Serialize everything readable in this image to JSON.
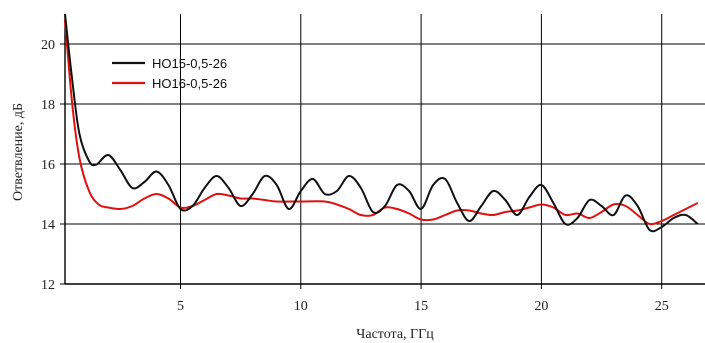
{
  "chart_data": {
    "type": "line",
    "title": "",
    "xlabel": "Частота, ГГц",
    "ylabel": "Ответвление, дБ",
    "xlim": [
      0.2,
      26.8
    ],
    "ylim": [
      12,
      21
    ],
    "xticks": [
      5,
      10,
      15,
      20,
      25
    ],
    "yticks": [
      12,
      14,
      16,
      18,
      20
    ],
    "xtick_labels": [
      "5",
      "10",
      "15",
      "20",
      "25"
    ],
    "ytick_labels": [
      "12",
      "14",
      "16",
      "18",
      "20"
    ],
    "grid": true,
    "legend_position": "top-left",
    "series": [
      {
        "name": "НО15-0,5-26",
        "color": "#111111",
        "points": [
          [
            0.2,
            21.0
          ],
          [
            0.5,
            18.8
          ],
          [
            0.8,
            17.0
          ],
          [
            1.2,
            16.1
          ],
          [
            1.5,
            15.98
          ],
          [
            2.0,
            16.3
          ],
          [
            2.5,
            15.8
          ],
          [
            3.0,
            15.2
          ],
          [
            3.5,
            15.4
          ],
          [
            4.0,
            15.75
          ],
          [
            4.5,
            15.3
          ],
          [
            5.0,
            14.5
          ],
          [
            5.5,
            14.6
          ],
          [
            6.0,
            15.2
          ],
          [
            6.5,
            15.6
          ],
          [
            7.0,
            15.2
          ],
          [
            7.5,
            14.6
          ],
          [
            8.0,
            15.0
          ],
          [
            8.5,
            15.6
          ],
          [
            9.0,
            15.3
          ],
          [
            9.5,
            14.5
          ],
          [
            10.0,
            15.1
          ],
          [
            10.5,
            15.5
          ],
          [
            11.0,
            15.0
          ],
          [
            11.5,
            15.1
          ],
          [
            12.0,
            15.6
          ],
          [
            12.5,
            15.2
          ],
          [
            13.0,
            14.4
          ],
          [
            13.5,
            14.6
          ],
          [
            14.0,
            15.3
          ],
          [
            14.5,
            15.1
          ],
          [
            15.0,
            14.5
          ],
          [
            15.5,
            15.3
          ],
          [
            16.0,
            15.5
          ],
          [
            16.5,
            14.7
          ],
          [
            17.0,
            14.1
          ],
          [
            17.5,
            14.6
          ],
          [
            18.0,
            15.1
          ],
          [
            18.5,
            14.8
          ],
          [
            19.0,
            14.3
          ],
          [
            19.5,
            14.9
          ],
          [
            20.0,
            15.3
          ],
          [
            20.5,
            14.7
          ],
          [
            21.0,
            14.0
          ],
          [
            21.5,
            14.2
          ],
          [
            22.0,
            14.8
          ],
          [
            22.5,
            14.6
          ],
          [
            23.0,
            14.3
          ],
          [
            23.5,
            14.95
          ],
          [
            24.0,
            14.6
          ],
          [
            24.5,
            13.8
          ],
          [
            25.0,
            13.9
          ],
          [
            25.5,
            14.2
          ],
          [
            26.0,
            14.3
          ],
          [
            26.5,
            14.0
          ]
        ]
      },
      {
        "name": "НО16-0,5-26",
        "color": "#e01010",
        "points": [
          [
            0.2,
            20.8
          ],
          [
            0.5,
            18.0
          ],
          [
            0.8,
            16.2
          ],
          [
            1.2,
            15.1
          ],
          [
            1.6,
            14.65
          ],
          [
            2.0,
            14.55
          ],
          [
            2.5,
            14.5
          ],
          [
            3.0,
            14.6
          ],
          [
            3.5,
            14.85
          ],
          [
            4.0,
            15.0
          ],
          [
            4.5,
            14.85
          ],
          [
            5.0,
            14.55
          ],
          [
            5.5,
            14.6
          ],
          [
            6.0,
            14.8
          ],
          [
            6.5,
            15.0
          ],
          [
            7.0,
            14.95
          ],
          [
            7.5,
            14.85
          ],
          [
            8.0,
            14.85
          ],
          [
            8.5,
            14.8
          ],
          [
            9.0,
            14.75
          ],
          [
            10.0,
            14.75
          ],
          [
            11.0,
            14.75
          ],
          [
            11.5,
            14.65
          ],
          [
            12.0,
            14.5
          ],
          [
            12.5,
            14.3
          ],
          [
            13.0,
            14.3
          ],
          [
            13.5,
            14.55
          ],
          [
            14.0,
            14.5
          ],
          [
            14.5,
            14.35
          ],
          [
            15.0,
            14.15
          ],
          [
            15.5,
            14.15
          ],
          [
            16.0,
            14.3
          ],
          [
            16.5,
            14.45
          ],
          [
            17.0,
            14.45
          ],
          [
            17.5,
            14.35
          ],
          [
            18.0,
            14.3
          ],
          [
            18.5,
            14.4
          ],
          [
            19.0,
            14.45
          ],
          [
            19.5,
            14.55
          ],
          [
            20.0,
            14.65
          ],
          [
            20.5,
            14.55
          ],
          [
            21.0,
            14.3
          ],
          [
            21.5,
            14.35
          ],
          [
            22.0,
            14.2
          ],
          [
            22.5,
            14.4
          ],
          [
            23.0,
            14.65
          ],
          [
            23.5,
            14.6
          ],
          [
            24.0,
            14.3
          ],
          [
            24.5,
            14.0
          ],
          [
            25.0,
            14.1
          ],
          [
            25.5,
            14.3
          ],
          [
            26.0,
            14.5
          ],
          [
            26.5,
            14.7
          ]
        ]
      }
    ]
  }
}
